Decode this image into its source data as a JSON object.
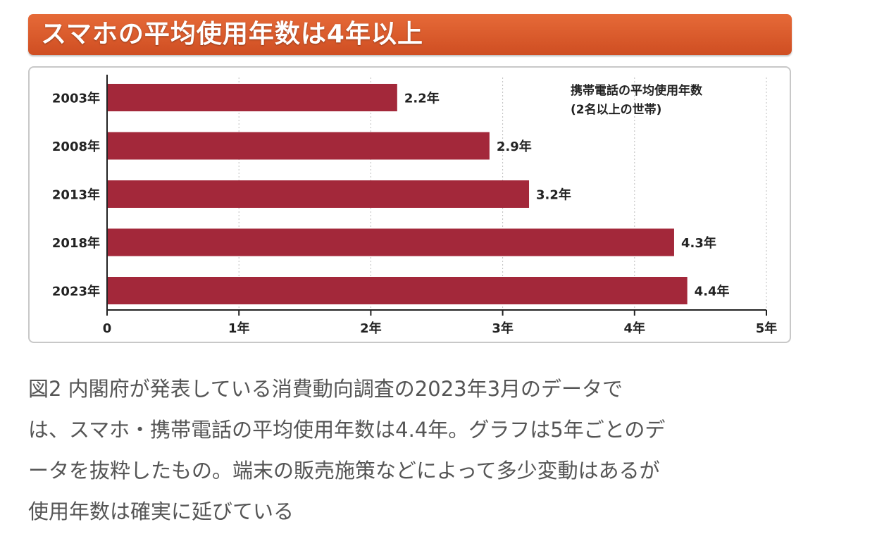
{
  "banner": {
    "title": "スマホの平均使用年数は4年以上"
  },
  "chart_data": {
    "type": "bar",
    "orientation": "horizontal",
    "title": "携帯電話の平均使用年数",
    "subtitle": "(2名以上の世帯)",
    "categories": [
      "2003年",
      "2008年",
      "2013年",
      "2018年",
      "2023年"
    ],
    "values": [
      2.2,
      2.9,
      3.2,
      4.3,
      4.4
    ],
    "value_labels": [
      "2.2年",
      "2.9年",
      "3.2年",
      "4.3年",
      "4.4年"
    ],
    "x_ticks": [
      0,
      1,
      2,
      3,
      4,
      5
    ],
    "x_tick_labels": [
      "0",
      "1年",
      "2年",
      "3年",
      "4年",
      "5年"
    ],
    "xlim": [
      0,
      5
    ],
    "grid": true,
    "legend_placement": "top-right",
    "bar_color": "#a3283a"
  },
  "caption": {
    "lines": [
      "図2 内閣府が発表している消費動向調査の2023年3月のデータで",
      "は、スマホ・携帯電話の平均使用年数は4.4年。グラフは5年ごとのデ",
      "ータを抜粋したもの。端末の販売施策などによって多少変動はあるが",
      "使用年数は確実に延びている"
    ]
  }
}
